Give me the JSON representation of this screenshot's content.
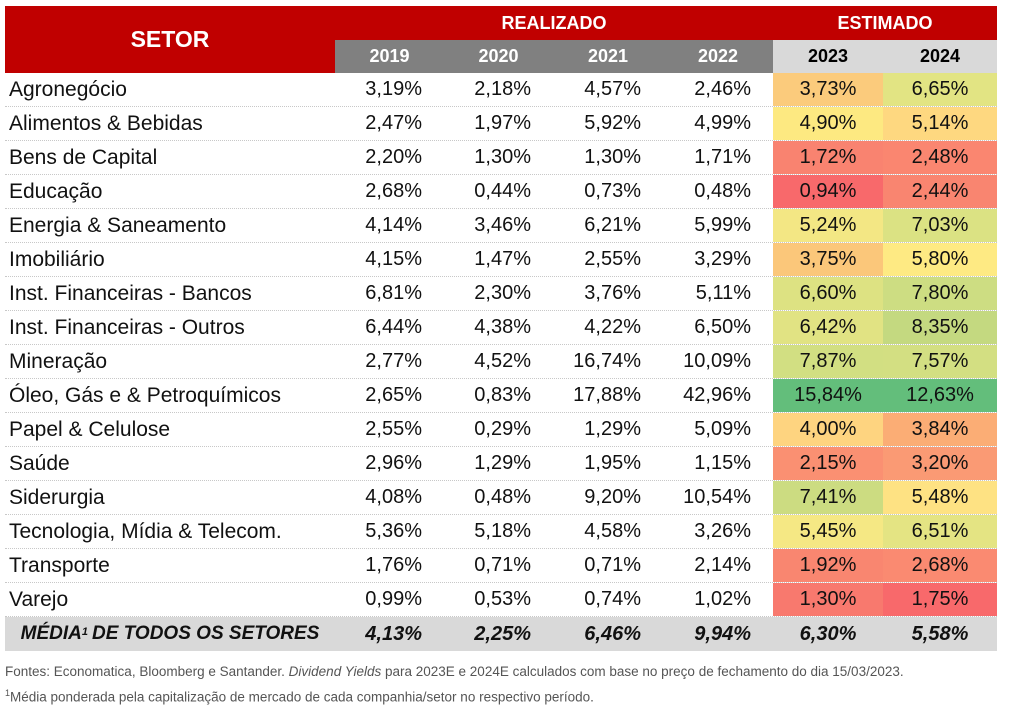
{
  "header": {
    "setor_label": "SETOR",
    "realizado_label": "REALIZADO",
    "estimado_label": "ESTIMADO",
    "years": [
      "2019",
      "2020",
      "2021",
      "2022",
      "2023",
      "2024"
    ]
  },
  "rows": [
    {
      "setor": "Agronegócio",
      "values": [
        "3,19%",
        "2,18%",
        "4,57%",
        "2,46%",
        "3,73%",
        "6,65%"
      ],
      "colors": [
        "#fbcb7c",
        "#e2e483"
      ]
    },
    {
      "setor": "Alimentos & Bebidas",
      "values": [
        "2,47%",
        "1,97%",
        "5,92%",
        "4,99%",
        "4,90%",
        "5,14%"
      ],
      "colors": [
        "#fde981",
        "#fed880"
      ]
    },
    {
      "setor": "Bens de Capital",
      "values": [
        "2,20%",
        "1,30%",
        "1,30%",
        "1,71%",
        "1,72%",
        "2,48%"
      ],
      "colors": [
        "#f98370",
        "#fa8670"
      ]
    },
    {
      "setor": "Educação",
      "values": [
        "2,68%",
        "0,44%",
        "0,73%",
        "0,48%",
        "0,94%",
        "2,44%"
      ],
      "colors": [
        "#f8696b",
        "#f98570"
      ]
    },
    {
      "setor": "Energia & Saneamento",
      "values": [
        "4,14%",
        "3,46%",
        "6,21%",
        "5,99%",
        "5,24%",
        "7,03%"
      ],
      "colors": [
        "#f3e784",
        "#dbe283"
      ]
    },
    {
      "setor": "Imobiliário",
      "values": [
        "4,15%",
        "1,47%",
        "2,55%",
        "3,29%",
        "3,75%",
        "5,80%"
      ],
      "colors": [
        "#fbc77a",
        "#feea83"
      ]
    },
    {
      "setor": "Inst. Financeiras - Bancos",
      "values": [
        "6,81%",
        "2,30%",
        "3,76%",
        "5,11%",
        "6,60%",
        "7,80%"
      ],
      "colors": [
        "#dde282",
        "#cddd82"
      ]
    },
    {
      "setor": "Inst. Financeiras - Outros",
      "values": [
        "6,44%",
        "4,38%",
        "4,22%",
        "6,50%",
        "6,42%",
        "8,35%"
      ],
      "colors": [
        "#e1e383",
        "#c4d980"
      ]
    },
    {
      "setor": "Mineração",
      "values": [
        "2,77%",
        "4,52%",
        "16,74%",
        "10,09%",
        "7,87%",
        "7,57%"
      ],
      "colors": [
        "#d2df82",
        "#d3df82"
      ]
    },
    {
      "setor": "Óleo, Gás e & Petroquímicos",
      "values": [
        "2,65%",
        "0,83%",
        "17,88%",
        "42,96%",
        "15,84%",
        "12,63%"
      ],
      "colors": [
        "#63be7b",
        "#63be7b"
      ]
    },
    {
      "setor": "Papel & Celulose",
      "values": [
        "2,55%",
        "0,29%",
        "1,29%",
        "5,09%",
        "4,00%",
        "3,84%"
      ],
      "colors": [
        "#fed480",
        "#fbad75"
      ]
    },
    {
      "setor": "Saúde",
      "values": [
        "2,96%",
        "1,29%",
        "1,95%",
        "1,15%",
        "2,15%",
        "3,20%"
      ],
      "colors": [
        "#fa9072",
        "#fa9a74"
      ]
    },
    {
      "setor": "Siderurgia",
      "values": [
        "4,08%",
        "0,48%",
        "9,20%",
        "10,54%",
        "7,41%",
        "5,48%"
      ],
      "colors": [
        "#ccdc81",
        "#fee283"
      ]
    },
    {
      "setor": "Tecnologia, Mídia & Telecom.",
      "values": [
        "5,36%",
        "5,18%",
        "4,58%",
        "3,26%",
        "5,45%",
        "6,51%"
      ],
      "colors": [
        "#f5e884",
        "#e4e483"
      ]
    },
    {
      "setor": "Transporte",
      "values": [
        "1,76%",
        "0,71%",
        "0,71%",
        "2,14%",
        "1,92%",
        "2,68%"
      ],
      "colors": [
        "#f98670",
        "#fa8a71"
      ]
    },
    {
      "setor": "Varejo",
      "values": [
        "0,99%",
        "0,53%",
        "0,74%",
        "1,02%",
        "1,30%",
        "1,75%"
      ],
      "colors": [
        "#f8796e",
        "#f8696b"
      ]
    }
  ],
  "average": {
    "label": "MÉDIA",
    "sup": "1",
    "label_rest": "DE TODOS OS SETORES",
    "values": [
      "4,13%",
      "2,25%",
      "6,46%",
      "9,94%",
      "6,30%",
      "5,58%"
    ]
  },
  "footnotes": {
    "line1_a": "Fontes: Economatica, Bloomberg e Santander. ",
    "line1_italic": "Dividend Yields",
    "line1_b": " para 2023E e 2024E calculados com base no preço de fechamento do dia 15/03/2023.",
    "line2_sup": "1",
    "line2": "Média ponderada pela capitalização de mercado de cada companhia/setor no respectivo período."
  },
  "colors": {
    "header_red": "#c00000",
    "header_dark_grey": "#808080",
    "header_light_grey": "#d9d9d9"
  }
}
